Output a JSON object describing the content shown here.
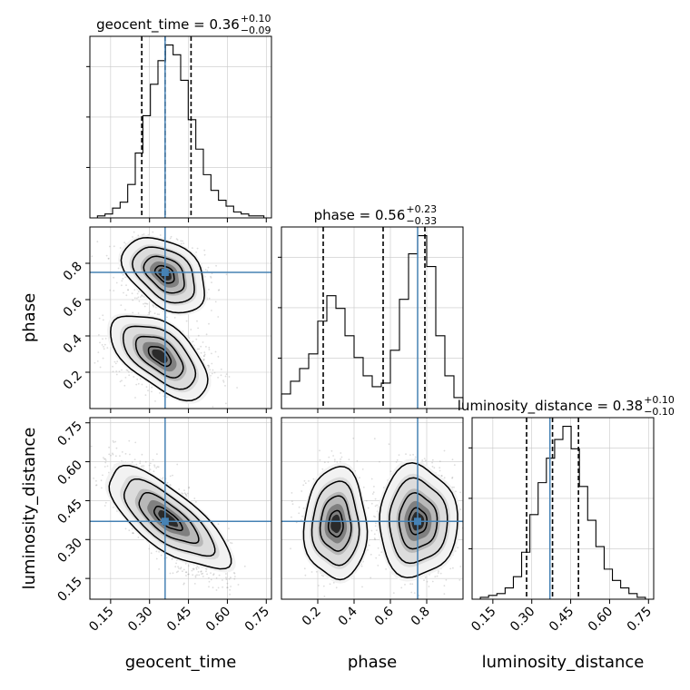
{
  "chart_data": {
    "type": "corner",
    "parameters": [
      "geocent_time",
      "phase",
      "luminosity_distance"
    ],
    "truths": [
      0.36,
      0.75,
      0.37
    ],
    "colors": {
      "truth": "#4682b4",
      "line": "#000000",
      "grid": "#c8c8c8"
    },
    "grid": true,
    "titles": {
      "geocent_time": {
        "name": "geocent_time",
        "median": "0.36",
        "plus": "+0.10",
        "minus": "−0.09"
      },
      "phase": {
        "name": "phase",
        "median": "0.56",
        "plus": "+0.23",
        "minus": "−0.33"
      },
      "luminosity_distance": {
        "name": "luminosity_distance",
        "median": "0.38",
        "plus": "+0.10",
        "minus": "−0.10"
      }
    },
    "ranges": {
      "geocent_time": [
        0.07,
        0.77
      ],
      "phase": [
        0.0,
        1.0
      ],
      "luminosity_distance": [
        0.07,
        0.77
      ]
    },
    "ticks": {
      "geocent_time": [
        "0.15",
        "0.30",
        "0.45",
        "0.60",
        "0.75"
      ],
      "phase": [
        "0.2",
        "0.4",
        "0.6",
        "0.8"
      ],
      "luminosity_distance": [
        "0.15",
        "0.30",
        "0.45",
        "0.60",
        "0.75"
      ]
    },
    "quantiles": {
      "geocent_time": [
        0.27,
        0.36,
        0.46
      ],
      "phase": [
        0.23,
        0.56,
        0.79
      ],
      "luminosity_distance": [
        0.28,
        0.38,
        0.48
      ]
    },
    "histograms": {
      "geocent_time": {
        "edges": [
          0.07,
          0.77
        ],
        "counts": [
          0,
          1,
          2,
          5,
          8,
          17,
          33,
          52,
          68,
          80,
          88,
          83,
          70,
          50,
          35,
          22,
          14,
          9,
          6,
          3,
          2,
          1,
          1,
          0
        ]
      },
      "phase": {
        "edges": [
          0.0,
          1.0
        ],
        "counts": [
          8,
          15,
          22,
          30,
          48,
          62,
          55,
          40,
          28,
          18,
          12,
          14,
          32,
          60,
          85,
          95,
          78,
          40,
          18,
          6
        ]
      },
      "luminosity_distance": {
        "edges": [
          0.07,
          0.77
        ],
        "counts": [
          0,
          1,
          2,
          3,
          6,
          12,
          25,
          45,
          62,
          75,
          85,
          92,
          80,
          60,
          42,
          28,
          16,
          10,
          6,
          3,
          1,
          0
        ]
      }
    }
  }
}
